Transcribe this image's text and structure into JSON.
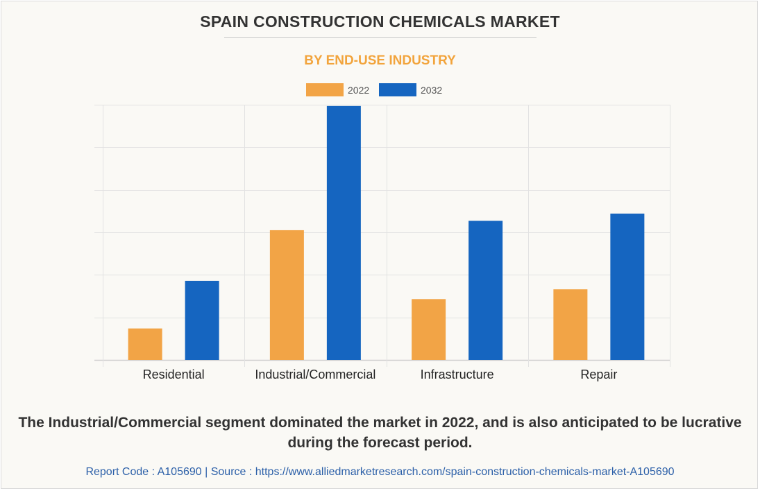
{
  "title": "SPAIN CONSTRUCTION CHEMICALS MARKET",
  "subtitle": "BY END-USE INDUSTRY",
  "colors": {
    "accent": "#f0a648",
    "series_2022": "#f2a446",
    "series_2032": "#1565c0",
    "subtitle": "#f2a43c"
  },
  "chart_data": {
    "type": "bar",
    "categories": [
      "Residential",
      "Industrial/Commercial",
      "Infrastructure",
      "Repair"
    ],
    "series": [
      {
        "name": "2022",
        "values": [
          0.74,
          3.05,
          1.43,
          1.66
        ],
        "color": "#f2a446"
      },
      {
        "name": "2032",
        "values": [
          1.86,
          5.97,
          3.27,
          3.44
        ],
        "color": "#1565c0"
      }
    ],
    "ylim": [
      0,
      6
    ],
    "ygrid_step": 1,
    "y_tick_labels_shown": false,
    "grid": true,
    "legend": "top-center",
    "xlabel": "",
    "ylabel": ""
  },
  "legend": {
    "items": [
      "2022",
      "2032"
    ]
  },
  "footer_note": "The Industrial/Commercial segment dominated the market in 2022, and is also anticipated to be lucrative during the forecast period.",
  "source_line": "Report Code : A105690  |  Source : https://www.alliedmarketresearch.com/spain-construction-chemicals-market-A105690"
}
